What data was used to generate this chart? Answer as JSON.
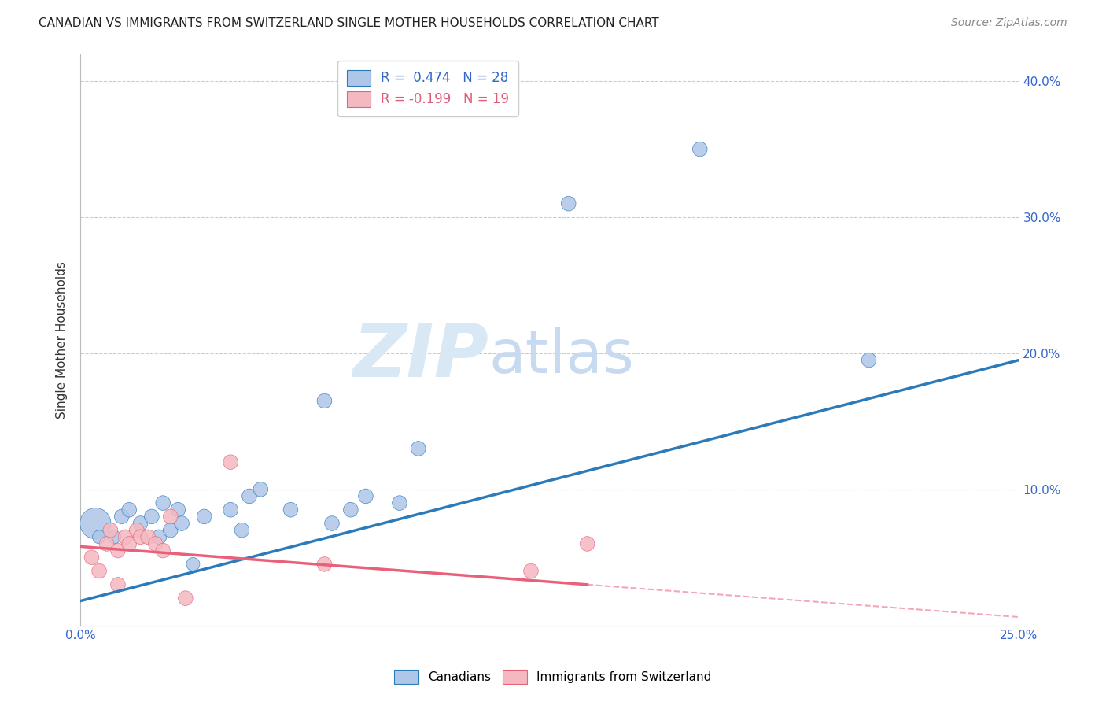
{
  "title": "CANADIAN VS IMMIGRANTS FROM SWITZERLAND SINGLE MOTHER HOUSEHOLDS CORRELATION CHART",
  "source": "Source: ZipAtlas.com",
  "ylabel": "Single Mother Households",
  "xlim": [
    0.0,
    0.25
  ],
  "ylim": [
    0.0,
    0.42
  ],
  "ytick_values": [
    0.0,
    0.1,
    0.2,
    0.3,
    0.4
  ],
  "xtick_values": [
    0.0,
    0.05,
    0.1,
    0.15,
    0.2,
    0.25
  ],
  "legend_r_canadian": "R =  0.474",
  "legend_n_canadian": "N = 28",
  "legend_r_swiss": "R = -0.199",
  "legend_n_swiss": "N = 19",
  "canadian_color": "#aec6e8",
  "swiss_color": "#f4b8c1",
  "canadian_line_color": "#2b7bba",
  "swiss_line_color": "#e8607a",
  "background_color": "#ffffff",
  "canadians_x": [
    0.004,
    0.005,
    0.009,
    0.011,
    0.013,
    0.016,
    0.019,
    0.021,
    0.022,
    0.024,
    0.026,
    0.027,
    0.03,
    0.033,
    0.04,
    0.043,
    0.045,
    0.048,
    0.056,
    0.065,
    0.067,
    0.072,
    0.076,
    0.085,
    0.09,
    0.13,
    0.165,
    0.21
  ],
  "canadians_y": [
    0.075,
    0.065,
    0.065,
    0.08,
    0.085,
    0.075,
    0.08,
    0.065,
    0.09,
    0.07,
    0.085,
    0.075,
    0.045,
    0.08,
    0.085,
    0.07,
    0.095,
    0.1,
    0.085,
    0.165,
    0.075,
    0.085,
    0.095,
    0.09,
    0.13,
    0.31,
    0.35,
    0.195
  ],
  "canadians_size": [
    800,
    150,
    150,
    180,
    180,
    180,
    180,
    180,
    180,
    180,
    180,
    180,
    150,
    180,
    180,
    180,
    180,
    180,
    180,
    180,
    180,
    180,
    180,
    180,
    180,
    180,
    180,
    180
  ],
  "swiss_x": [
    0.003,
    0.005,
    0.007,
    0.008,
    0.01,
    0.01,
    0.012,
    0.013,
    0.015,
    0.016,
    0.018,
    0.02,
    0.022,
    0.024,
    0.028,
    0.04,
    0.065,
    0.12,
    0.135
  ],
  "swiss_y": [
    0.05,
    0.04,
    0.06,
    0.07,
    0.055,
    0.03,
    0.065,
    0.06,
    0.07,
    0.065,
    0.065,
    0.06,
    0.055,
    0.08,
    0.02,
    0.12,
    0.045,
    0.04,
    0.06
  ],
  "swiss_size": [
    180,
    180,
    180,
    180,
    180,
    180,
    180,
    180,
    180,
    180,
    180,
    180,
    180,
    180,
    180,
    180,
    180,
    180,
    180
  ],
  "canadian_trend_x0": 0.0,
  "canadian_trend_y0": 0.018,
  "canadian_trend_x1": 0.25,
  "canadian_trend_y1": 0.195,
  "swiss_trend_x0": 0.0,
  "swiss_trend_y0": 0.058,
  "swiss_trend_x1": 0.135,
  "swiss_trend_y1": 0.03
}
